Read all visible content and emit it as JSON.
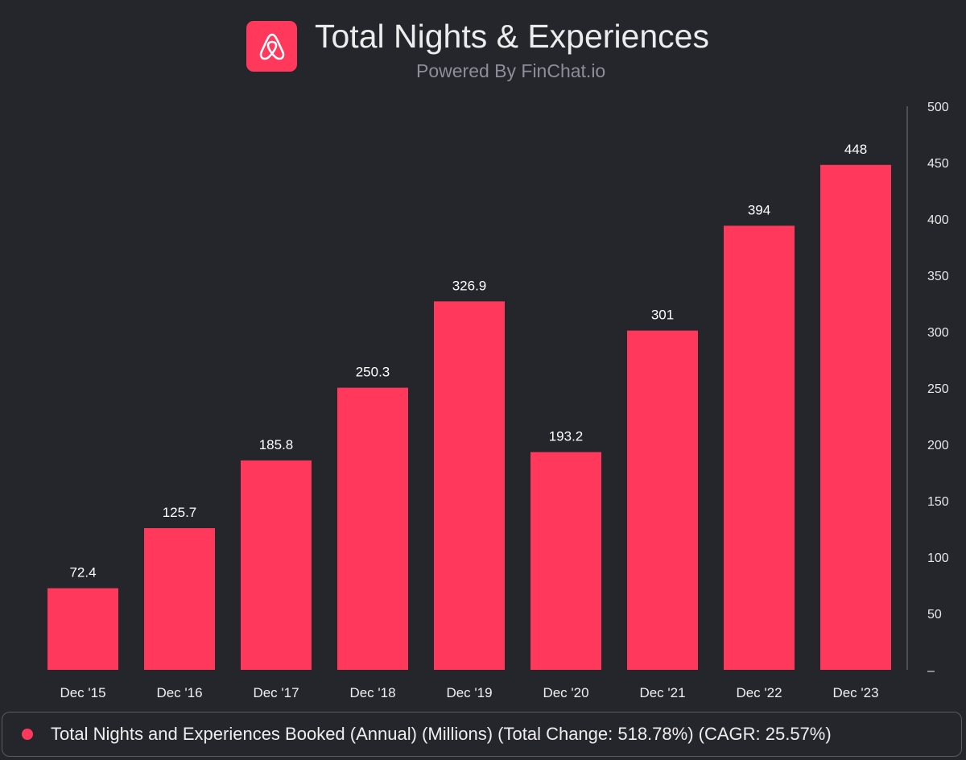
{
  "header": {
    "title": "Total Nights & Experiences",
    "subtitle": "Powered By FinChat.io",
    "logo": "airbnb-logo-icon"
  },
  "colors": {
    "background": "#25252c",
    "bar": "#ff385c",
    "axis": "#5c5c64"
  },
  "chart_data": {
    "type": "bar",
    "title": "Total Nights & Experiences",
    "xlabel": "",
    "ylabel": "",
    "categories": [
      "Dec '15",
      "Dec '16",
      "Dec '17",
      "Dec '18",
      "Dec '19",
      "Dec '20",
      "Dec '21",
      "Dec '22",
      "Dec '23"
    ],
    "series": [
      {
        "name": "Total Nights and Experiences Booked (Annual) (Millions) (Total Change: 518.78%) (CAGR: 25.57%)",
        "values": [
          72.4,
          125.7,
          185.8,
          250.3,
          326.9,
          193.2,
          301,
          394,
          448
        ],
        "labels": [
          "72.4",
          "125.7",
          "185.8",
          "250.3",
          "326.9",
          "193.2",
          "301",
          "394",
          "448"
        ]
      }
    ],
    "ylim": [
      0,
      500
    ],
    "yticks": [
      0,
      50,
      100,
      150,
      200,
      250,
      300,
      350,
      400,
      450,
      500
    ],
    "ytick_labels": [
      "–",
      "50",
      "100",
      "150",
      "200",
      "250",
      "300",
      "350",
      "400",
      "450",
      "500"
    ],
    "y_axis_side": "right",
    "grid": false,
    "legend_position": "bottom"
  },
  "legend": {
    "text": "Total Nights and Experiences Booked (Annual) (Millions) (Total Change: 518.78%) (CAGR: 25.57%)"
  }
}
